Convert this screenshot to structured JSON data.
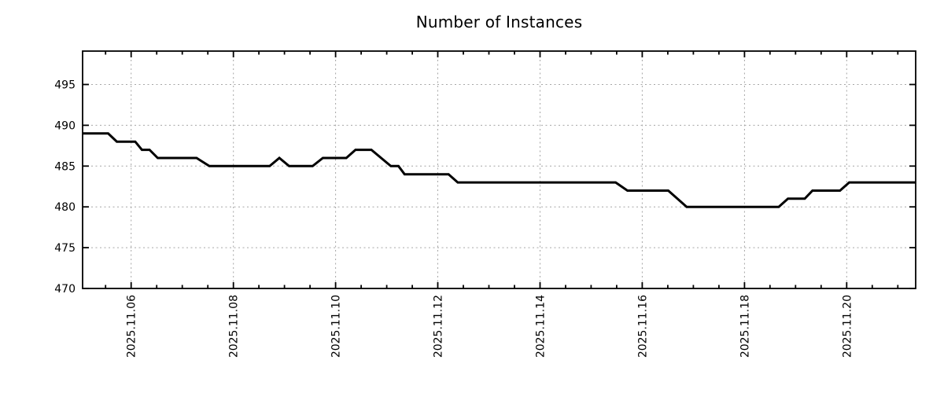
{
  "chart_data": {
    "type": "line",
    "title": "Number of Instances",
    "line_color": "#000000",
    "grid_color": "#a6a6a6",
    "border_color": "#000000",
    "background_color": "#ffffff",
    "grid": true,
    "legend": "none",
    "x_axis": {
      "epoch": "2025.11.05",
      "domain_days": [
        0.05,
        16.35
      ],
      "minor_tick_step_days": 0.5,
      "major_ticks": [
        {
          "t": 1,
          "label": "2025.11.06"
        },
        {
          "t": 3,
          "label": "2025.11.08"
        },
        {
          "t": 5,
          "label": "2025.11.10"
        },
        {
          "t": 7,
          "label": "2025.11.12"
        },
        {
          "t": 9,
          "label": "2025.11.14"
        },
        {
          "t": 11,
          "label": "2025.11.16"
        },
        {
          "t": 13,
          "label": "2025.11.18"
        },
        {
          "t": 15,
          "label": "2025.11.20"
        }
      ]
    },
    "y_axis": {
      "domain": [
        470,
        499.1
      ],
      "ticks": [
        {
          "v": 470,
          "label": "470"
        },
        {
          "v": 475,
          "label": "475"
        },
        {
          "v": 480,
          "label": "480"
        },
        {
          "v": 485,
          "label": "485"
        },
        {
          "v": 490,
          "label": "490"
        },
        {
          "v": 495,
          "label": "495"
        }
      ]
    },
    "series": [
      {
        "name": "instances",
        "points_t_days_value": [
          [
            0.05,
            489
          ],
          [
            0.55,
            489
          ],
          [
            0.72,
            488
          ],
          [
            1.08,
            488
          ],
          [
            1.21,
            487
          ],
          [
            1.36,
            487
          ],
          [
            1.52,
            486
          ],
          [
            2.28,
            486
          ],
          [
            2.53,
            485
          ],
          [
            3.71,
            485
          ],
          [
            3.9,
            486
          ],
          [
            4.09,
            485
          ],
          [
            4.55,
            485
          ],
          [
            4.75,
            486
          ],
          [
            5.21,
            486
          ],
          [
            5.39,
            487
          ],
          [
            5.7,
            487
          ],
          [
            6.08,
            485
          ],
          [
            6.23,
            485
          ],
          [
            6.35,
            484
          ],
          [
            7.21,
            484
          ],
          [
            7.39,
            483
          ],
          [
            10.48,
            483
          ],
          [
            10.71,
            482
          ],
          [
            11.51,
            482
          ],
          [
            11.87,
            480
          ],
          [
            13.67,
            480
          ],
          [
            13.85,
            481
          ],
          [
            14.18,
            481
          ],
          [
            14.33,
            482
          ],
          [
            14.87,
            482
          ],
          [
            15.05,
            483
          ],
          [
            16.35,
            483
          ]
        ]
      }
    ]
  }
}
